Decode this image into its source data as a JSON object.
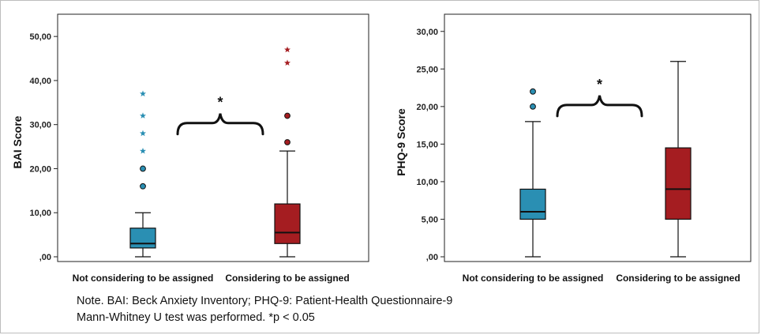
{
  "chart_data": [
    {
      "type": "box",
      "ylabel": "BAI Score",
      "ylim": [
        0,
        52
      ],
      "yticks": [
        0,
        10,
        20,
        30,
        40,
        50
      ],
      "yticklabels": [
        ",00",
        "10,00",
        "20,00",
        "30,00",
        "40,00",
        "50,00"
      ],
      "categories": [
        "Not considering to be assigned",
        "Considering to be assigned"
      ],
      "boxes": [
        {
          "whisker_low": 0,
          "q1": 2,
          "median": 3,
          "q3": 6.5,
          "whisker_high": 10,
          "outliers_circle": [
            16,
            20
          ],
          "outliers_star": [
            24,
            28,
            32,
            37
          ],
          "color": "#2a8fb3"
        },
        {
          "whisker_low": 0,
          "q1": 3,
          "median": 5.5,
          "q3": 12,
          "whisker_high": 24,
          "outliers_circle": [
            26,
            32
          ],
          "outliers_star": [
            44,
            47
          ],
          "color": "#a51d21"
        }
      ],
      "significance": "*",
      "brace_y": 30
    },
    {
      "type": "box",
      "ylabel": "PHQ-9 Score",
      "ylim": [
        0,
        30.5
      ],
      "yticks": [
        0,
        5,
        10,
        15,
        20,
        25,
        30
      ],
      "yticklabels": [
        ",00",
        "5,00",
        "10,00",
        "15,00",
        "20,00",
        "25,00",
        "30,00"
      ],
      "categories": [
        "Not considering to be assigned",
        "Considering to be assigned"
      ],
      "boxes": [
        {
          "whisker_low": 0,
          "q1": 5,
          "median": 6,
          "q3": 9,
          "whisker_high": 18,
          "outliers_circle": [
            20,
            22
          ],
          "outliers_star": [],
          "color": "#2a8fb3"
        },
        {
          "whisker_low": 0,
          "q1": 5,
          "median": 9,
          "q3": 14.5,
          "whisker_high": 26,
          "outliers_circle": [],
          "outliers_star": [],
          "color": "#a51d21"
        }
      ],
      "significance": "*",
      "brace_y": 20
    }
  ],
  "note": {
    "line1": "Note. BAI: Beck Anxiety Inventory; PHQ-9: Patient-Health Questionnaire-9",
    "line2": "Mann-Whitney U test was performed. *p < 0.05"
  }
}
